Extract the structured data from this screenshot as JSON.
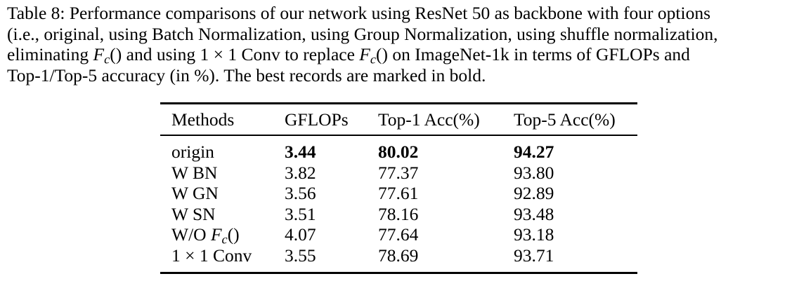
{
  "caption": {
    "label": "Table 8:",
    "lines": [
      "Table 8: Performance comparisons of our network using ResNet 50 as backbone with four options",
      "(i.e., original, using Batch Normalization, using Group Normalization, using shuffle normalization,",
      "eliminating F_c() and using 1 × 1 Conv to replace F_c() on ImageNet-1k in terms of GFLOPs and",
      "Top-1/Top-5 accuracy (in %). The best records are marked in bold."
    ],
    "line3_parts": {
      "a": "eliminating ",
      "math1_base": "F",
      "math1_sub": "c",
      "math1_paren": "()",
      "b": " and using 1 × 1 Conv to replace ",
      "math2_base": "F",
      "math2_sub": "c",
      "math2_paren": "()",
      "c": " on ImageNet-1k in terms of GFLOPs and"
    }
  },
  "table": {
    "headers": [
      "Methods",
      "GFLOPs",
      "Top-1 Acc(%)",
      "Top-5 Acc(%)"
    ],
    "rows": [
      {
        "method": "origin",
        "gflops": "3.44",
        "top1": "80.02",
        "top5": "94.27",
        "bold": [
          false,
          true,
          true,
          true
        ]
      },
      {
        "method": "W BN",
        "gflops": "3.82",
        "top1": "77.37",
        "top5": "93.80",
        "bold": [
          false,
          false,
          false,
          false
        ]
      },
      {
        "method": "W GN",
        "gflops": "3.56",
        "top1": "77.61",
        "top5": "92.89",
        "bold": [
          false,
          false,
          false,
          false
        ]
      },
      {
        "method": "W SN",
        "gflops": "3.51",
        "top1": "78.16",
        "top5": "93.48",
        "bold": [
          false,
          false,
          false,
          false
        ]
      },
      {
        "method": "W/O F_c()",
        "method_prefix": "W/O ",
        "method_math_base": "F",
        "method_math_sub": "c",
        "method_math_paren": "()",
        "gflops": "4.07",
        "top1": "77.64",
        "top5": "93.18",
        "bold": [
          false,
          false,
          false,
          false
        ]
      },
      {
        "method": "1 × 1 Conv",
        "gflops": "3.55",
        "top1": "78.69",
        "top5": "93.71",
        "bold": [
          false,
          false,
          false,
          false
        ]
      }
    ]
  }
}
